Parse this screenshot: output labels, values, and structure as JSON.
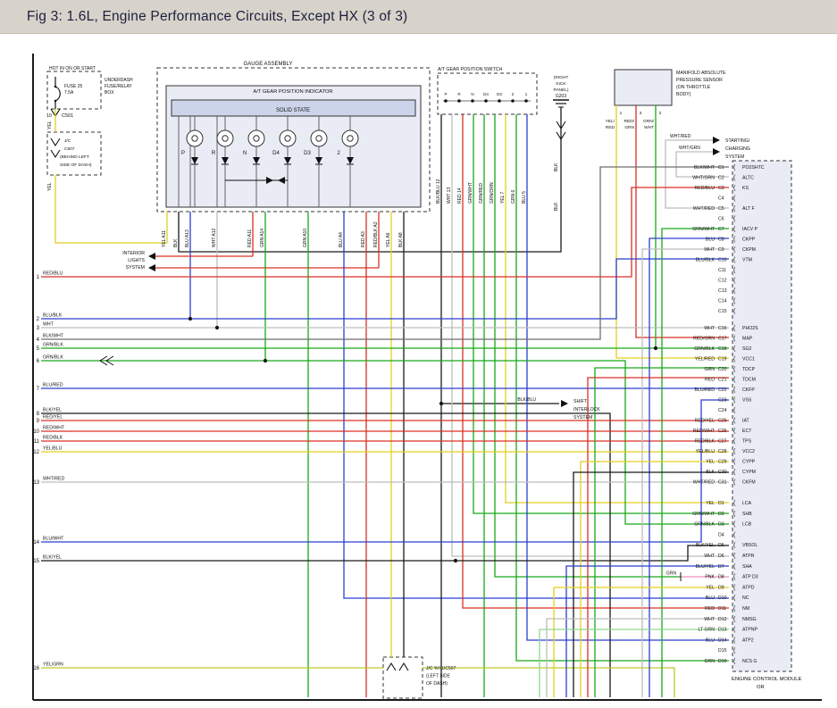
{
  "header": {
    "title": "Fig 3: 1.6L, Engine Performance Circuits, Except HX (3 of 3)"
  },
  "palette": {
    "RED": "#d93025",
    "BLU": "#2b3fd0",
    "GRN": "#18a918",
    "YEL": "#e3cf1f",
    "BLK": "#1a1a1a",
    "WHT_WIRE": "#bdbdbd",
    "BLKWHT": "#6e6e6e",
    "PNK": "#ef8fbc",
    "LTGRN": "#8cd98c",
    "YELGRN": "#bcc928",
    "BOX_FILL": "#e9ecf5",
    "BAR_FILL": "#ccd4ea",
    "HEADER_BG": "#d7d3ca",
    "HEADER_TEXT": "#1e1e3e"
  },
  "power": {
    "title": "HOT IN ON OR START",
    "fuse_name": "FUSE 25",
    "fuse_rating": "7.5A",
    "box_label": [
      "UNDERDASH",
      "FUSE/RELAY",
      "BOX"
    ],
    "pin": "10",
    "connector": "C501",
    "wire": "YEL",
    "wire2": "YEL"
  },
  "jc_top": {
    "label": [
      "J/C",
      "C507",
      "(BEHIND LEFT",
      "SIDE OF DASH)"
    ]
  },
  "gauge": {
    "title": "GAUGE ASSEMBLY",
    "indicator": "A/T GEAR POSITION INDICATOR",
    "solid_state": "SOLID STATE",
    "positions": [
      "P",
      "R",
      "N",
      "D4",
      "D3",
      "2"
    ],
    "pins": [
      {
        "label": "YEL A11",
        "color": "YEL"
      },
      {
        "label": "BLK",
        "color": "BLK"
      },
      {
        "label": "BLU A13",
        "color": "BLU"
      },
      {
        "label": "WHT A12",
        "color": "WHT_WIRE"
      },
      {
        "label": "RED A11",
        "color": "RED"
      },
      {
        "label": "GRN A14",
        "color": "GRN"
      },
      {
        "label": "GRN A10",
        "color": "GRN"
      },
      {
        "label": "BLU A4",
        "color": "BLU"
      },
      {
        "label": "RED A3",
        "color": "RED"
      },
      {
        "label": "RED/BLK A2",
        "color": "RED"
      },
      {
        "label": "YEL A6",
        "color": "YEL"
      },
      {
        "label": "BLK A8",
        "color": "BLK"
      }
    ]
  },
  "gear_switch": {
    "title": "A/T GEAR POSITION SWITCH",
    "positions": [
      "P",
      "R",
      "N",
      "D4",
      "D3",
      "2",
      "1"
    ],
    "pins": [
      "BLK/BLU 12",
      "WHT 13",
      "RED 14",
      "GRN/WHT",
      "GRN/RED",
      "GRN/ORN",
      "YEL 7",
      "GRN 6",
      "BLU 5"
    ]
  },
  "ground": {
    "location": [
      "(RIGHT",
      "KICK",
      "PANEL)"
    ],
    "name": "G203",
    "wire": "BLK",
    "wire2": "BLK"
  },
  "map_sensor": {
    "label": [
      "MANIFOLD ABSOLUTE",
      "PRESSURE SENSOR",
      "(ON THROTTLE",
      "BODY)"
    ],
    "pins": [
      "1",
      "3",
      "2"
    ],
    "wires": [
      [
        "YEL/",
        "RED"
      ],
      [
        "RED/",
        "GRN"
      ],
      [
        "GRN/",
        "WHT"
      ]
    ]
  },
  "interior_lights": {
    "label": [
      "INTERIOR",
      "LIGHTS",
      "SYSTEM"
    ]
  },
  "starting": {
    "label": [
      "STARTING/",
      "CHARGING",
      "SYSTEM"
    ],
    "wires": [
      "WHT/RED",
      "WHT/GRN"
    ]
  },
  "shift_interlock": {
    "label": [
      "SHIFT",
      "INTERLOCK",
      "SYSTEM"
    ],
    "wire": "BLK/BLU"
  },
  "jc_bottom": {
    "label": [
      "J/C %%UC507",
      "(LEFT SIDE",
      "OF DASH)"
    ]
  },
  "ecm": {
    "label": "ENGINE CONTROL MODULE",
    "label2": "OR",
    "d8_extra": "GRN",
    "c_pins": [
      [
        "BLK/WHT",
        "C1",
        "PO2SHTC"
      ],
      [
        "WHT/GRN",
        "C2",
        "ALTC"
      ],
      [
        "RED/BLU",
        "C3",
        "KS"
      ],
      [
        "",
        "C4",
        ""
      ],
      [
        "WHT/RED",
        "C5",
        "ALT F"
      ],
      [
        "",
        "C6",
        ""
      ],
      [
        "GRN/WHT",
        "C7",
        "IACV P"
      ],
      [
        "BLU",
        "C8",
        "CKPP"
      ],
      [
        "WHT",
        "C9",
        "CKPM"
      ],
      [
        "BLU/BLK",
        "C10",
        "VTM"
      ],
      [
        "",
        "C11",
        ""
      ],
      [
        "",
        "C12",
        ""
      ],
      [
        "",
        "C13",
        ""
      ],
      [
        "",
        "C14",
        ""
      ],
      [
        "",
        "C15",
        ""
      ],
      [
        "WHT",
        "C16",
        "PHO2S"
      ],
      [
        "RED/GRN",
        "C17",
        "MAP"
      ],
      [
        "GRN/BLK",
        "C18",
        "SG2"
      ],
      [
        "YEL/RED",
        "C19",
        "VCC1"
      ],
      [
        "GRN",
        "C20",
        "TDCP"
      ],
      [
        "RED",
        "C21",
        "TDCM"
      ],
      [
        "BLU/RED",
        "C22",
        "CKFP"
      ],
      [
        "",
        "C23",
        "VSS"
      ],
      [
        "",
        "C24",
        ""
      ],
      [
        "RED/YEL",
        "C25",
        "IAT"
      ],
      [
        "RED/WHT",
        "C26",
        "ECT"
      ],
      [
        "RED/BLK",
        "C27",
        "TPS"
      ],
      [
        "YEL/BLU",
        "C28",
        "VCC2"
      ],
      [
        "YEL",
        "C29",
        "CYPP"
      ],
      [
        "BLK",
        "C30",
        "CYPM"
      ],
      [
        "WHT/RED",
        "C31",
        "CKFM"
      ]
    ],
    "d_pins": [
      [
        "YEL",
        "D1",
        "LCA"
      ],
      [
        "GRN/WHT",
        "D2",
        "SHB"
      ],
      [
        "GRN/BLK",
        "D3",
        "LCB"
      ],
      [
        "",
        "D4",
        ""
      ],
      [
        "BLK/YEL",
        "D5",
        "VBSOL"
      ],
      [
        "WHT",
        "D6",
        "ATPR"
      ],
      [
        "BLU/YEL",
        "D7",
        "SHA"
      ],
      [
        "PNK",
        "D8",
        "ATP D3"
      ],
      [
        "YEL",
        "D9",
        "ATPD"
      ],
      [
        "BLU",
        "D10",
        "NC"
      ],
      [
        "RED",
        "D11",
        "NM"
      ],
      [
        "WHT",
        "D12",
        "NMSG"
      ],
      [
        "LT GRN",
        "D13",
        "ATPNP"
      ],
      [
        "BLU",
        "D14",
        "ATP2"
      ],
      [
        "",
        "D15",
        ""
      ],
      [
        "GRN",
        "D16",
        "NCS G"
      ]
    ]
  },
  "left_rows": [
    [
      "1",
      "RED/BLU"
    ],
    [
      "2",
      "BLU/BLK"
    ],
    [
      "3",
      "WHT"
    ],
    [
      "4",
      "BLK/WHT"
    ],
    [
      "5",
      "GRN/BLK"
    ],
    [
      "6",
      "GRN/BLK"
    ],
    [
      "7",
      "BLU/RED"
    ],
    [
      "8",
      "BLK/YEL"
    ],
    [
      "9",
      "RED/YEL"
    ],
    [
      "10",
      "RED/WHT"
    ],
    [
      "11",
      "RED/BLK"
    ],
    [
      "12",
      "YEL/BLU"
    ],
    [
      "13",
      "WHT/RED"
    ],
    [
      "14",
      "BLU/WHT"
    ],
    [
      "15",
      "BLK/YEL"
    ],
    [
      "16",
      "YEL/GRN"
    ]
  ]
}
